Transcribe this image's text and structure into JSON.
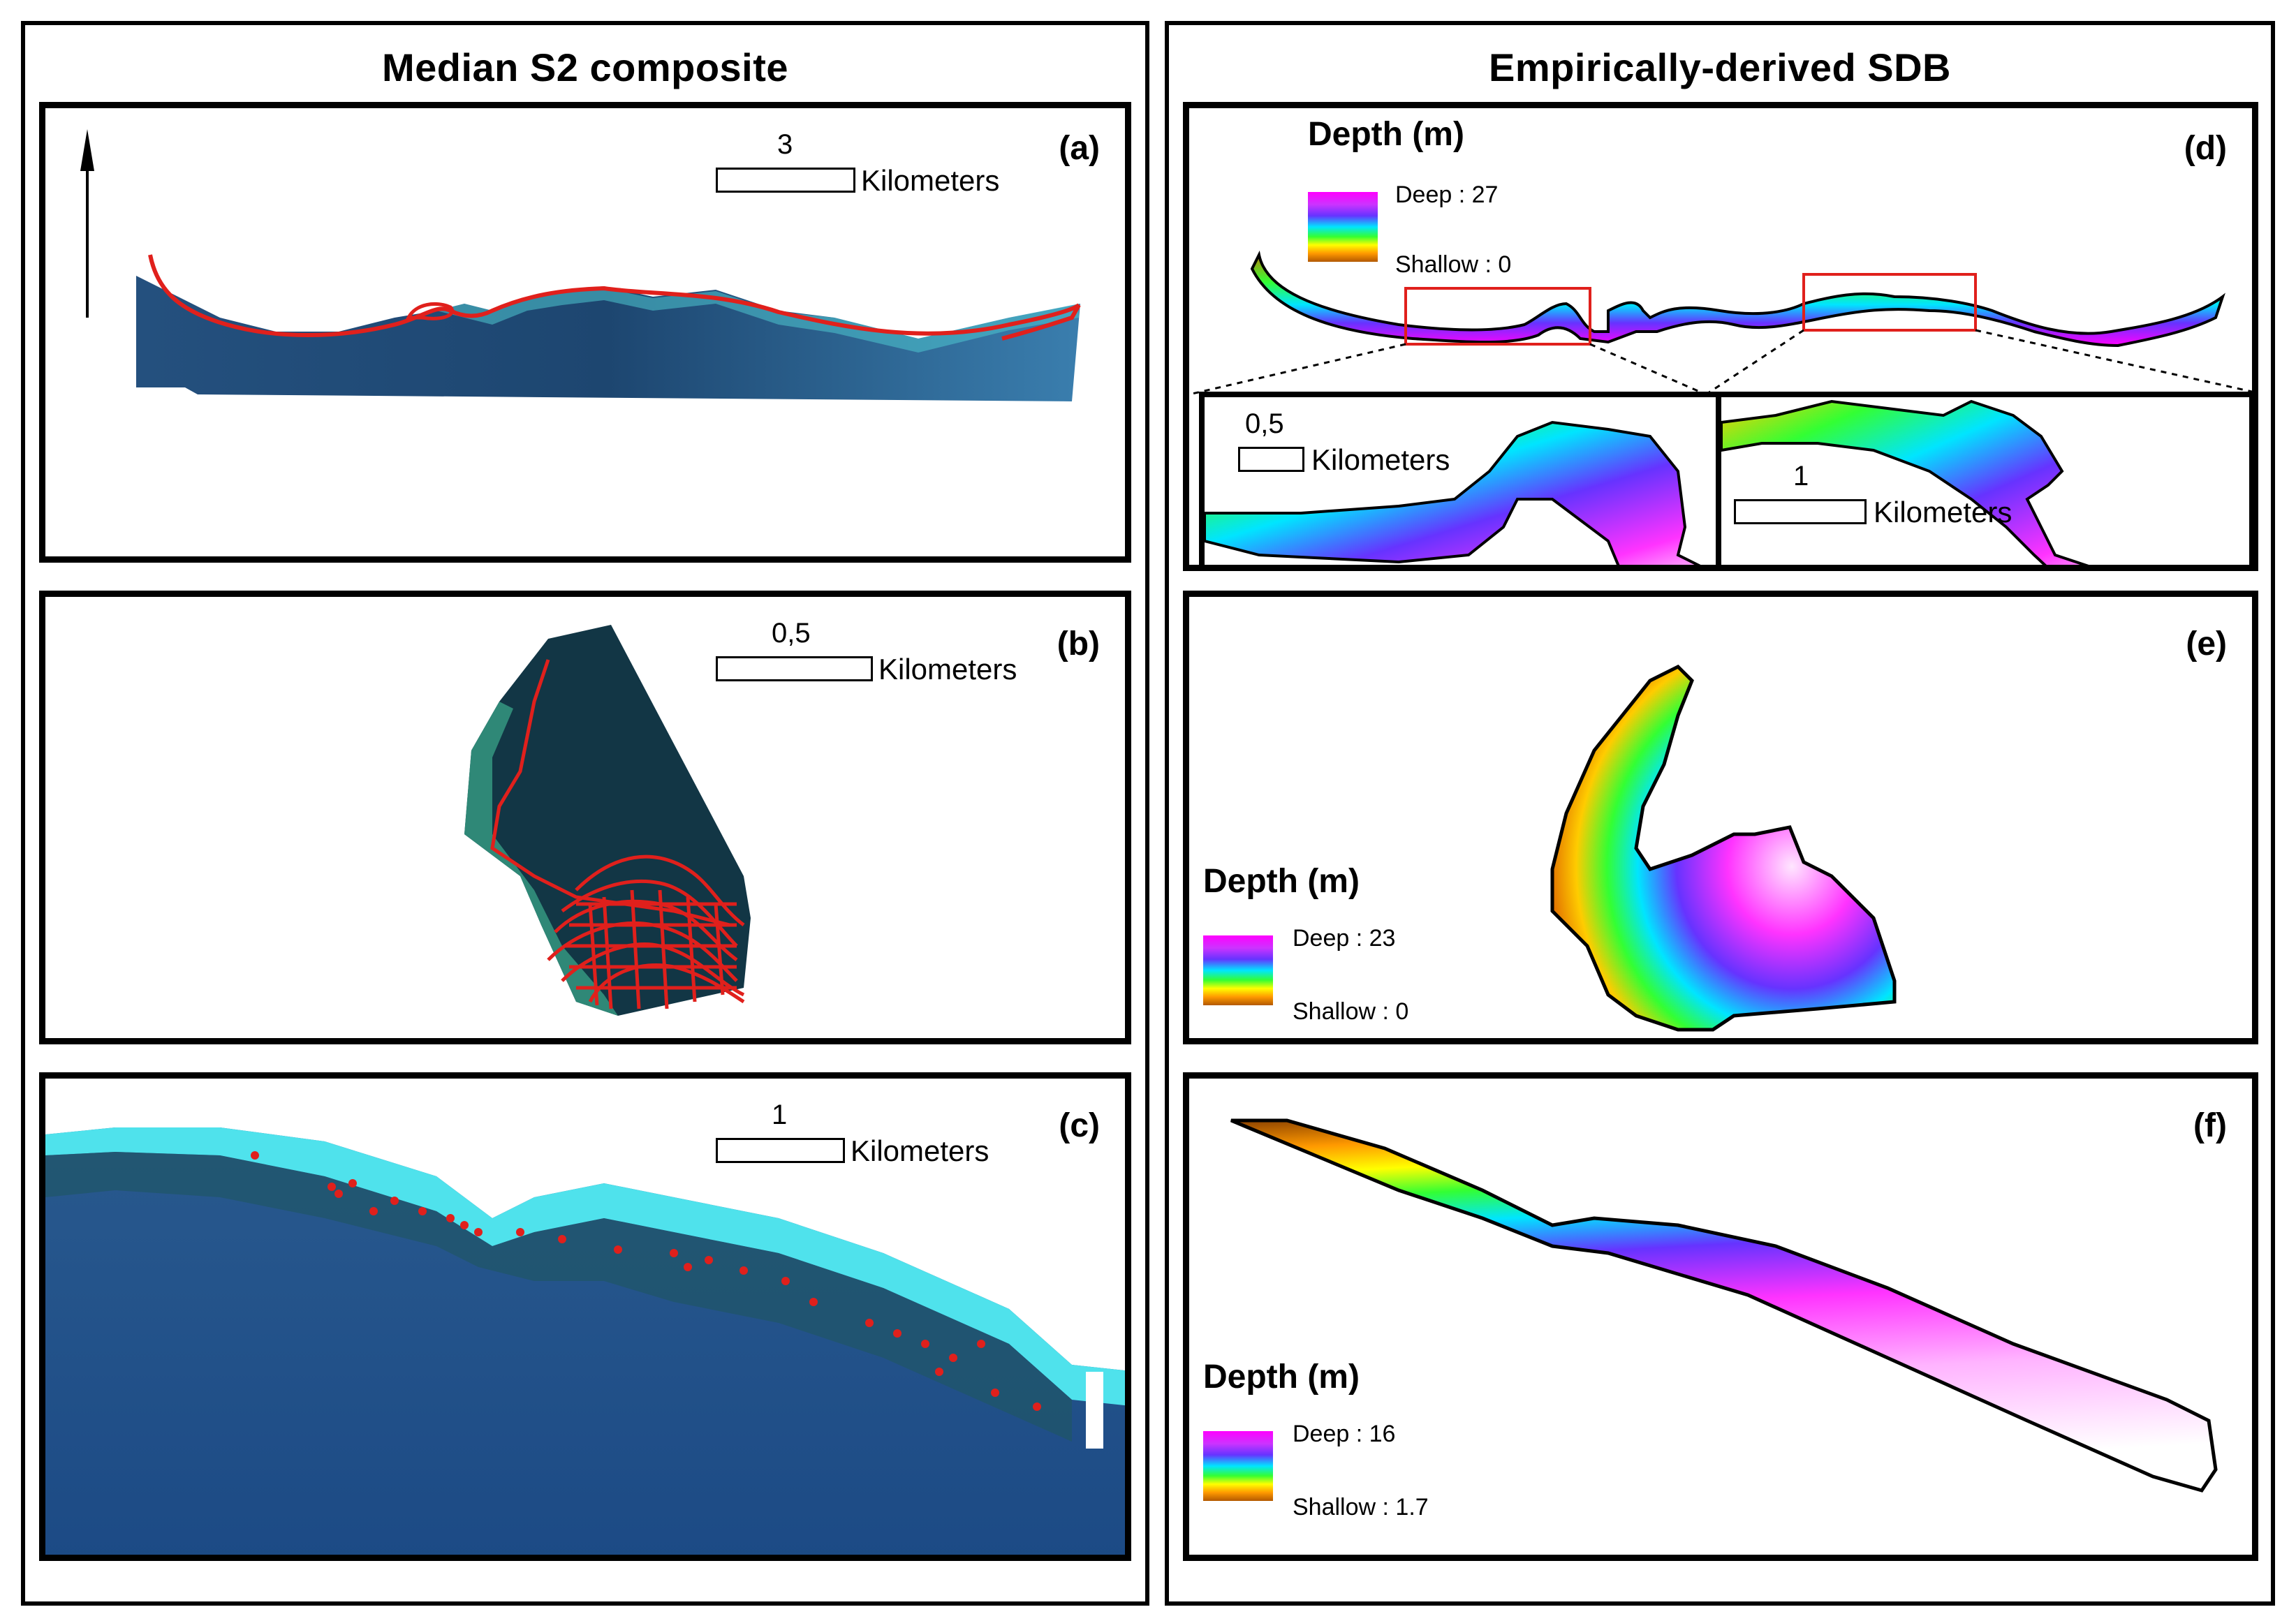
{
  "left_column": {
    "title": "Median S2 composite",
    "panels": {
      "a": {
        "label": "(a)",
        "scale": {
          "value": "3",
          "unit": "Kilometers"
        },
        "north_label": "N"
      },
      "b": {
        "label": "(b)",
        "scale": {
          "value": "0,5",
          "unit": "Kilometers"
        }
      },
      "c": {
        "label": "(c)",
        "scale": {
          "value": "1",
          "unit": "Kilometers"
        }
      }
    }
  },
  "right_column": {
    "title": "Empirically-derived SDB",
    "panels": {
      "d": {
        "label": "(d)",
        "legend": {
          "title": "Depth (m)",
          "deep": "Deep : 27",
          "shallow": "Shallow : 0"
        },
        "inset_left_scale": {
          "value": "0,5",
          "unit": "Kilometers"
        },
        "inset_right_scale": {
          "value": "1",
          "unit": "Kilometers"
        }
      },
      "e": {
        "label": "(e)",
        "legend": {
          "title": "Depth (m)",
          "deep": "Deep : 23",
          "shallow": "Shallow : 0"
        }
      },
      "f": {
        "label": "(f)",
        "legend": {
          "title": "Depth (m)",
          "deep": "Deep : 16",
          "shallow": "Shallow : 1.7"
        }
      }
    }
  },
  "colors": {
    "track": "#e0201c",
    "sea_dark": "#1b3f6e",
    "sea_mid": "#2a5a8c",
    "shore": "#56e6ee",
    "inset_box": "#e0201c"
  }
}
